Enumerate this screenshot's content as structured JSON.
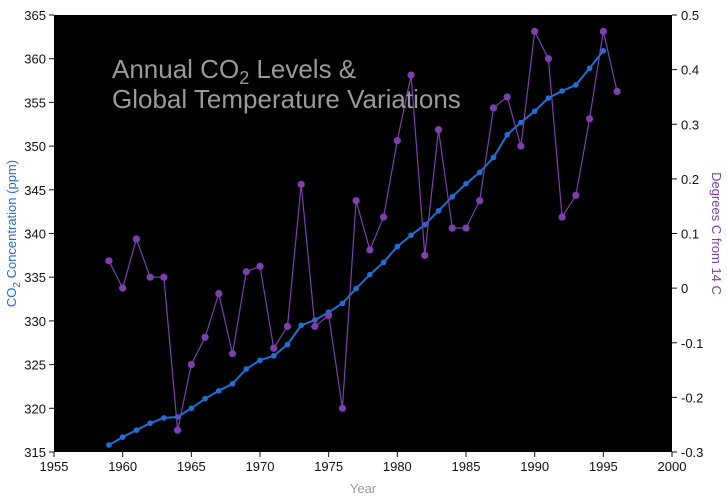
{
  "chart_data": {
    "type": "line",
    "title_line1": "Annual CO",
    "title_sub": "2",
    "title_line1_rest": " Levels &",
    "title_line2": "Global Temperature Variations",
    "xlabel": "Year",
    "ylabel_left_prefix": "CO",
    "ylabel_left_sub": "2",
    "ylabel_left_suffix": " Concentration (ppm)",
    "ylabel_right": "Degrees C from 14 C",
    "xlim": [
      1955,
      2000
    ],
    "ylim_left": [
      315,
      365
    ],
    "ylim_right": [
      -0.3,
      0.5
    ],
    "x_ticks": [
      "1955",
      "1960",
      "1965",
      "1970",
      "1975",
      "1980",
      "1985",
      "1990",
      "1995",
      "2000"
    ],
    "y_left_ticks": [
      "315",
      "320",
      "325",
      "330",
      "335",
      "340",
      "345",
      "350",
      "355",
      "360",
      "365"
    ],
    "y_right_ticks": [
      "-0.3",
      "-0.2",
      "-0.1",
      "0",
      "0.1",
      "0.2",
      "0.3",
      "0.4",
      "0.5"
    ],
    "grid": false,
    "background_color": "#000000",
    "series": [
      {
        "axis": "left",
        "color": "#1f6fd6",
        "x": [
          1959,
          1960,
          1961,
          1962,
          1963,
          1964,
          1965,
          1966,
          1967,
          1968,
          1969,
          1970,
          1971,
          1972,
          1973,
          1974,
          1975,
          1976,
          1977,
          1978,
          1979,
          1980,
          1981,
          1982,
          1983,
          1984,
          1985,
          1986,
          1987,
          1988,
          1989,
          1990,
          1991,
          1992,
          1993,
          1994,
          1995
        ],
        "values": [
          315.8,
          316.7,
          317.5,
          318.3,
          318.9,
          319.0,
          320.0,
          321.1,
          322.0,
          322.8,
          324.5,
          325.5,
          326.0,
          327.3,
          329.5,
          330.1,
          331.0,
          332.0,
          333.7,
          335.3,
          336.7,
          338.5,
          339.8,
          341.0,
          342.6,
          344.2,
          345.7,
          347.0,
          348.7,
          351.3,
          352.7,
          354.0,
          355.5,
          356.3,
          357.0,
          358.9,
          360.9
        ]
      },
      {
        "axis": "right",
        "color": "#7b3fb0",
        "x": [
          1959,
          1960,
          1961,
          1962,
          1963,
          1964,
          1965,
          1966,
          1967,
          1968,
          1969,
          1970,
          1971,
          1972,
          1973,
          1974,
          1975,
          1976,
          1977,
          1978,
          1979,
          1980,
          1981,
          1982,
          1983,
          1984,
          1985,
          1986,
          1987,
          1988,
          1989,
          1990,
          1991,
          1992,
          1993,
          1994,
          1995,
          1996
        ],
        "values": [
          0.05,
          0.0,
          0.09,
          0.02,
          0.02,
          -0.26,
          -0.14,
          -0.09,
          -0.01,
          -0.12,
          0.03,
          0.04,
          -0.11,
          -0.07,
          0.19,
          -0.07,
          -0.05,
          -0.22,
          0.16,
          0.07,
          0.13,
          0.27,
          0.39,
          0.06,
          0.29,
          0.11,
          0.11,
          0.16,
          0.33,
          0.35,
          0.26,
          0.47,
          0.42,
          0.13,
          0.17,
          0.31,
          0.47,
          0.36
        ]
      }
    ]
  }
}
